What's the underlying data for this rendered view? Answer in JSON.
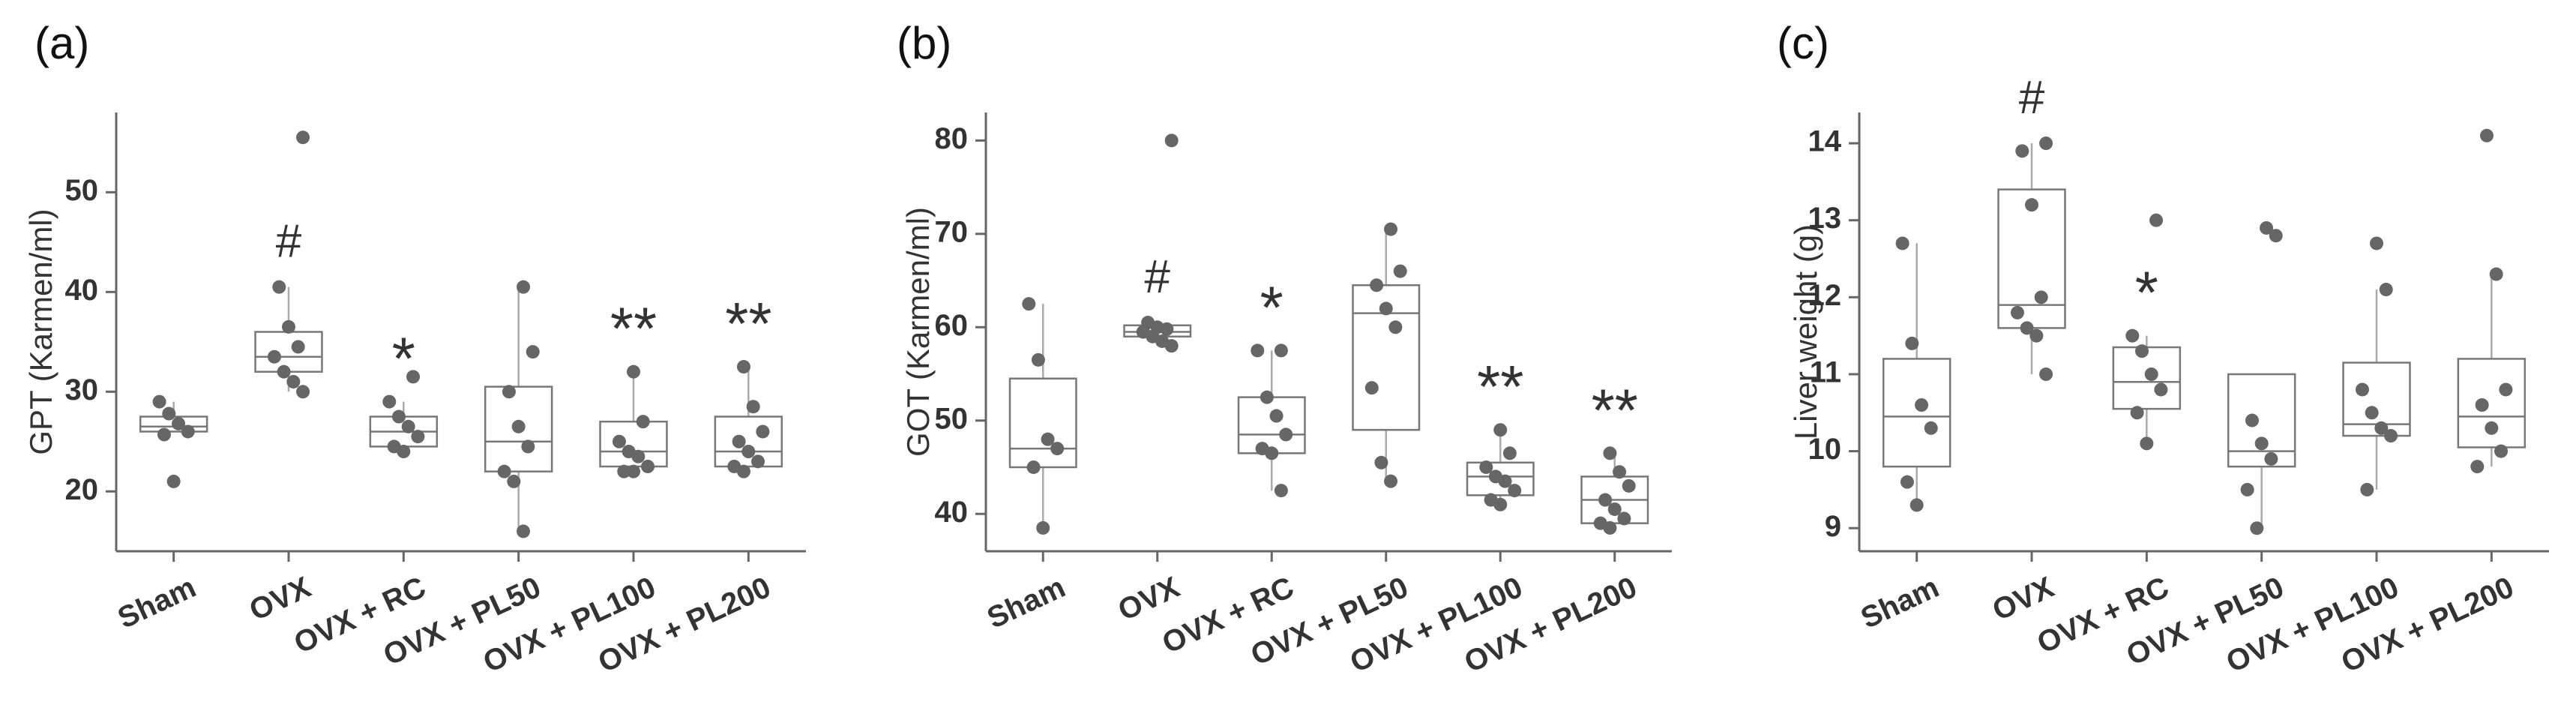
{
  "chart_data": [
    {
      "type": "box",
      "panel_label": "(a)",
      "title": "",
      "xlabel": "",
      "ylabel": "GPT (Karmen/ml)",
      "ylim": [
        14,
        58
      ],
      "yticks": [
        "20",
        "30",
        "40",
        "50"
      ],
      "categories": [
        "Sham",
        "OVX",
        "OVX + RC",
        "OVX + PL50",
        "OVX + PL100",
        "OVX + PL200"
      ],
      "boxes": [
        {
          "min": 26,
          "q1": 26,
          "median": 26.5,
          "q3": 27.5,
          "max": 29
        },
        {
          "min": 30,
          "q1": 32,
          "median": 33.5,
          "q3": 36,
          "max": 40.5
        },
        {
          "min": 24,
          "q1": 24.5,
          "median": 26,
          "q3": 27.5,
          "max": 29
        },
        {
          "min": 16,
          "q1": 22,
          "median": 25,
          "q3": 30.5,
          "max": 40.5
        },
        {
          "min": 22,
          "q1": 22.5,
          "median": 24,
          "q3": 27,
          "max": 32
        },
        {
          "min": 22,
          "q1": 22.5,
          "median": 24,
          "q3": 27.5,
          "max": 32.5
        }
      ],
      "points": [
        [
          29,
          27.8,
          26.8,
          26,
          25.7,
          21
        ],
        [
          55.5,
          40.5,
          36.5,
          34.5,
          33.5,
          32,
          31,
          30
        ],
        [
          31.5,
          29,
          27.5,
          26.5,
          25.5,
          24.5,
          24
        ],
        [
          40.5,
          34,
          30,
          26.5,
          24.5,
          22,
          21,
          16
        ],
        [
          32,
          27,
          25,
          24,
          23.5,
          22.5,
          22,
          22
        ],
        [
          32.5,
          28.5,
          26,
          25,
          24,
          23,
          22.5,
          22
        ]
      ],
      "annotations": [
        "",
        "#",
        "*",
        "",
        "**",
        "**"
      ]
    },
    {
      "type": "box",
      "panel_label": "(b)",
      "title": "",
      "xlabel": "",
      "ylabel": "GOT (Karmen/ml)",
      "ylim": [
        36,
        83
      ],
      "yticks": [
        "40",
        "50",
        "60",
        "70",
        "80"
      ],
      "categories": [
        "Sham",
        "OVX",
        "OVX + RC",
        "OVX + PL50",
        "OVX + PL100",
        "OVX + PL200"
      ],
      "boxes": [
        {
          "min": 38.5,
          "q1": 45,
          "median": 47,
          "q3": 54.5,
          "max": 62.5
        },
        {
          "min": 58,
          "q1": 59,
          "median": 59.5,
          "q3": 60.2,
          "max": 60.5
        },
        {
          "min": 42.5,
          "q1": 46.5,
          "median": 48.5,
          "q3": 52.5,
          "max": 57.5
        },
        {
          "min": 43.5,
          "q1": 49,
          "median": 61.5,
          "q3": 64.5,
          "max": 70.5
        },
        {
          "min": 41,
          "q1": 42,
          "median": 44,
          "q3": 45.5,
          "max": 49
        },
        {
          "min": 38.5,
          "q1": 39,
          "median": 41.5,
          "q3": 44,
          "max": 46.5
        }
      ],
      "points": [
        [
          62.5,
          56.5,
          48,
          47,
          45,
          38.5
        ],
        [
          80,
          60.5,
          60,
          59.8,
          59.5,
          59,
          58.5,
          58
        ],
        [
          57.5,
          57.5,
          52.5,
          50.5,
          48.5,
          47,
          46.5,
          42.5
        ],
        [
          70.5,
          66,
          64.5,
          62,
          60,
          53.5,
          45.5,
          43.5
        ],
        [
          49,
          46.5,
          45,
          44,
          43.5,
          42.5,
          41.5,
          41
        ],
        [
          46.5,
          44.5,
          43,
          41.5,
          40.5,
          39.5,
          39,
          38.5
        ]
      ],
      "annotations": [
        "",
        "#",
        "*",
        "",
        "**",
        "**"
      ]
    },
    {
      "type": "box",
      "panel_label": "(c)",
      "title": "",
      "xlabel": "",
      "ylabel": "Liver weight (g)",
      "ylim": [
        8.7,
        14.4
      ],
      "yticks": [
        "9",
        "10",
        "11",
        "12",
        "13",
        "14"
      ],
      "categories": [
        "Sham",
        "OVX",
        "OVX + RC",
        "OVX + PL50",
        "OVX + PL100",
        "OVX + PL200"
      ],
      "boxes": [
        {
          "min": 9.3,
          "q1": 9.8,
          "median": 10.45,
          "q3": 11.2,
          "max": 12.7
        },
        {
          "min": 11,
          "q1": 11.6,
          "median": 11.9,
          "q3": 13.4,
          "max": 14
        },
        {
          "min": 10.1,
          "q1": 10.55,
          "median": 10.9,
          "q3": 11.35,
          "max": 11.5
        },
        {
          "min": 9,
          "q1": 9.8,
          "median": 10,
          "q3": 11,
          "max": 11
        },
        {
          "min": 9.5,
          "q1": 10.2,
          "median": 10.35,
          "q3": 11.15,
          "max": 12.1
        },
        {
          "min": 9.8,
          "q1": 10.05,
          "median": 10.45,
          "q3": 11.2,
          "max": 12.3
        }
      ],
      "points": [
        [
          12.7,
          11.4,
          10.6,
          10.3,
          9.6,
          9.3
        ],
        [
          14,
          13.9,
          13.2,
          12,
          11.8,
          11.6,
          11.5,
          11
        ],
        [
          13,
          11.5,
          11.3,
          11,
          10.8,
          10.5,
          10.1
        ],
        [
          12.9,
          12.8,
          10.4,
          10.1,
          9.9,
          9.5,
          9
        ],
        [
          12.7,
          12.1,
          10.8,
          10.5,
          10.3,
          10.2,
          9.5
        ],
        [
          14.1,
          12.3,
          10.8,
          10.6,
          10.3,
          10,
          9.8
        ]
      ],
      "annotations": [
        "",
        "#",
        "*",
        "",
        "",
        ""
      ]
    }
  ]
}
